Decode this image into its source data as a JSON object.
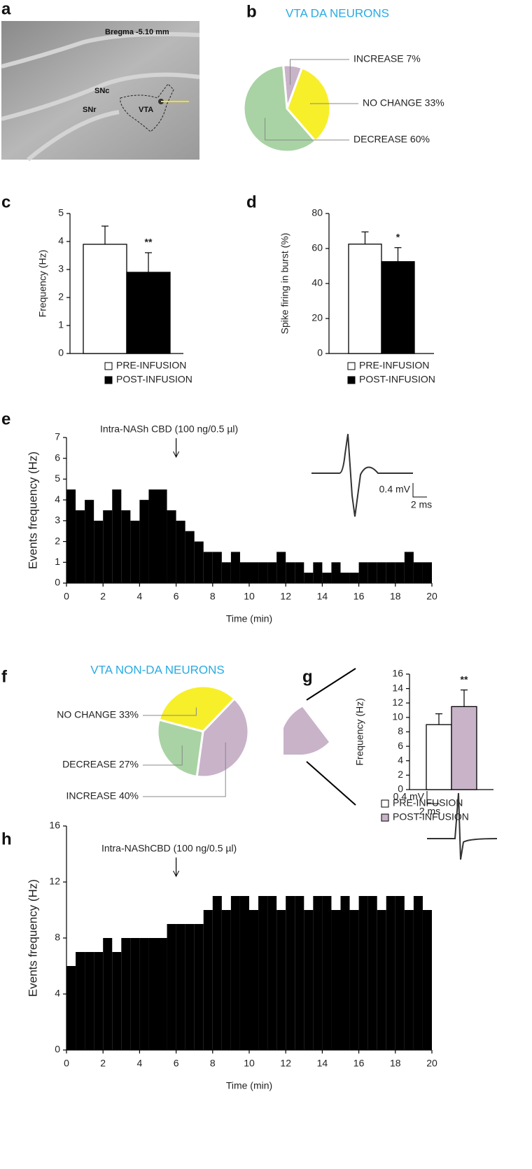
{
  "histology": {
    "panel": "a",
    "labels": [
      "Bregma -5.10 mm",
      "SNc",
      "SNr",
      "VTA"
    ]
  },
  "chart_data": [
    {
      "type": "pie",
      "panel": "b",
      "title": "VTA DA NEURONS",
      "values": [
        7,
        33,
        60
      ],
      "value_labels": [
        "INCREASE 7%",
        "NO CHANGE 33%",
        "DECREASE 60%"
      ],
      "colors": [
        "#c9b3c9",
        "#f7ef2a",
        "#a9d3a4"
      ]
    },
    {
      "type": "bar",
      "panel": "c",
      "ylabel": "Frequency (Hz)",
      "categories": [
        null
      ],
      "annotation": "**",
      "series": [
        {
          "name": "PRE-INFUSION",
          "color": "#ffffff",
          "values": [
            3.9
          ],
          "errors": [
            0.65
          ]
        },
        {
          "name": "POST-INFUSION",
          "color": "#000000",
          "values": [
            2.9
          ],
          "errors": [
            0.7
          ]
        }
      ],
      "ylim": [
        0,
        5
      ],
      "yticks": [
        0,
        1,
        2,
        3,
        4,
        5
      ]
    },
    {
      "type": "bar",
      "panel": "d",
      "ylabel": "Spike firing in burst  (%)",
      "categories": [
        null
      ],
      "annotation": "*",
      "series": [
        {
          "name": "PRE-INFUSION",
          "color": "#ffffff",
          "values": [
            62.5
          ],
          "errors": [
            7
          ]
        },
        {
          "name": "POST-INFUSION",
          "color": "#000000",
          "values": [
            52.5
          ],
          "errors": [
            8
          ]
        }
      ],
      "ylim": [
        0,
        80
      ],
      "yticks": [
        0,
        20,
        40,
        60,
        80
      ]
    },
    {
      "type": "histogram",
      "panel": "e",
      "xlabel": "Time (min)",
      "ylabel": "Events frequency (Hz)",
      "color": "#000000",
      "bins": [
        0,
        0.5,
        1,
        1.5,
        2,
        2.5,
        3,
        3.5,
        4,
        4.5,
        5,
        5.5,
        6,
        6.5,
        7,
        7.5,
        8,
        8.5,
        9,
        9.5,
        10,
        10.5,
        11,
        11.5,
        12,
        12.5,
        13,
        13.5,
        14,
        14.5,
        15,
        15.5,
        16,
        16.5,
        17,
        17.5,
        18,
        18.5,
        19,
        19.5,
        20
      ],
      "values": [
        4.5,
        3.5,
        4,
        3,
        3.5,
        4.5,
        3.5,
        3,
        4,
        4.5,
        4.5,
        3.5,
        3,
        2.5,
        2,
        1.5,
        1.5,
        1,
        1.5,
        1,
        1,
        1,
        1,
        1.5,
        1,
        1,
        0.5,
        1,
        0.5,
        1,
        0.5,
        0.5,
        1,
        1,
        1,
        1,
        1,
        1.5,
        1,
        1
      ],
      "xlim": [
        0,
        20
      ],
      "xticks": [
        0,
        2,
        4,
        6,
        8,
        10,
        12,
        14,
        16,
        18,
        20
      ],
      "ylim": [
        0,
        7
      ],
      "yticks": [
        0,
        1,
        2,
        3,
        4,
        5,
        6,
        7
      ],
      "annotation": {
        "text": "Intra-NASh CBD (100 ng/0.5 µl)",
        "x": 6
      },
      "scale_bar": {
        "voltage": "0.4 mV",
        "time": "2 ms"
      }
    },
    {
      "type": "pie",
      "panel": "f",
      "title": "VTA NON-DA NEURONS",
      "values": [
        33,
        40,
        27
      ],
      "value_labels": [
        "NO CHANGE 33%",
        "INCREASE 40%",
        "DECREASE 27%"
      ],
      "colors": [
        "#f7ef2a",
        "#c9b3c9",
        "#a9d3a4"
      ]
    },
    {
      "type": "bar",
      "panel": "g",
      "ylabel": "Frequency (Hz)",
      "categories": [
        null
      ],
      "annotation": "**",
      "series": [
        {
          "name": "PRE-INFUSION",
          "color": "#ffffff",
          "values": [
            9
          ],
          "errors": [
            1.5
          ]
        },
        {
          "name": "POST-INFUSION",
          "color": "#c9b3c9",
          "values": [
            11.5
          ],
          "errors": [
            2.3
          ]
        }
      ],
      "ylim": [
        0,
        16
      ],
      "yticks": [
        0,
        2,
        4,
        6,
        8,
        10,
        12,
        14,
        16
      ]
    },
    {
      "type": "histogram",
      "panel": "h",
      "xlabel": "Time (min)",
      "ylabel": "Events frequency (Hz)",
      "color": "#000000",
      "bins": [
        0,
        0.5,
        1,
        1.5,
        2,
        2.5,
        3,
        3.5,
        4,
        4.5,
        5,
        5.5,
        6,
        6.5,
        7,
        7.5,
        8,
        8.5,
        9,
        9.5,
        10,
        10.5,
        11,
        11.5,
        12,
        12.5,
        13,
        13.5,
        14,
        14.5,
        15,
        15.5,
        16,
        16.5,
        17,
        17.5,
        18,
        18.5,
        19,
        19.5,
        20
      ],
      "values": [
        6,
        7,
        7,
        7,
        8,
        7,
        8,
        8,
        8,
        8,
        8,
        9,
        9,
        9,
        9,
        10,
        11,
        10,
        11,
        11,
        10,
        11,
        11,
        10,
        11,
        11,
        10,
        11,
        11,
        10,
        11,
        10,
        11,
        11,
        10,
        11,
        11,
        10,
        11,
        10
      ],
      "xlim": [
        0,
        20
      ],
      "xticks": [
        0,
        2,
        4,
        6,
        8,
        10,
        12,
        14,
        16,
        18,
        20
      ],
      "ylim": [
        0,
        16
      ],
      "yticks": [
        0,
        4,
        8,
        12,
        16
      ],
      "annotation": {
        "text": "Intra-NAShCBD (100 ng/0.5 µl)",
        "x": 6
      },
      "scale_bar": {
        "voltage": "0.4 mV",
        "time": "2 ms"
      }
    }
  ]
}
